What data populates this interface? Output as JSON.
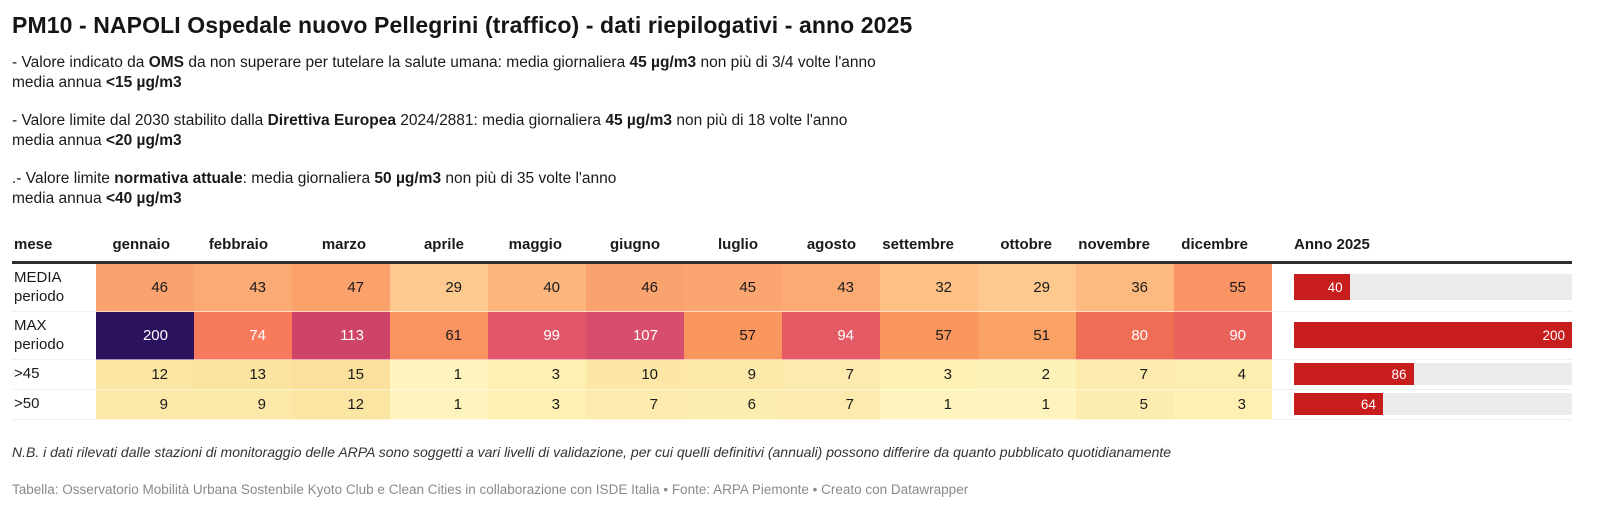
{
  "header": {
    "title": "PM10 - NAPOLI Ospedale nuovo Pellegrini (traffico) - dati riepilogativi - anno 2025"
  },
  "intro": {
    "paragraphs": [
      {
        "segments": [
          {
            "text": "- Valore indicato da "
          },
          {
            "text": "OMS",
            "bold": true
          },
          {
            "text": " da non superare per tutelare la salute umana: media giornaliera "
          },
          {
            "text": "45 µg/m3",
            "bold": true
          },
          {
            "text": " non più di 3/4 volte l'anno"
          },
          {
            "break": true
          },
          {
            "text": "media annua "
          },
          {
            "text": "<15 µg/m3",
            "bold": true
          }
        ]
      },
      {
        "segments": [
          {
            "text": "- Valore limite dal 2030 stabilito dalla "
          },
          {
            "text": "Direttiva Europea",
            "bold": true
          },
          {
            "text": " 2024/2881: media giornaliera "
          },
          {
            "text": "45 µg/m3",
            "bold": true
          },
          {
            "text": " non più di 18 volte l'anno"
          },
          {
            "break": true
          },
          {
            "text": "media annua "
          },
          {
            "text": "<20 µg/m3",
            "bold": true
          }
        ]
      },
      {
        "segments": [
          {
            "text": ".- Valore limite "
          },
          {
            "text": "normativa attuale",
            "bold": true
          },
          {
            "text": ": media giornaliera "
          },
          {
            "text": "50 µg/m3",
            "bold": true
          },
          {
            "text": " non più di 35 volte l'anno"
          },
          {
            "break": true
          },
          {
            "text": "media annua "
          },
          {
            "text": "<40 µg/m3",
            "bold": true
          }
        ]
      }
    ]
  },
  "table": {
    "header": [
      "mese",
      "gennaio",
      "febbraio",
      "marzo",
      "aprile",
      "maggio",
      "giugno",
      "luglio",
      "agosto",
      "settembre",
      "ottobre",
      "novembre",
      "dicembre",
      "Anno 2025"
    ],
    "bar_max": 200,
    "bar_color": "#c71e1d",
    "track_color": "#ececec",
    "rows": [
      {
        "label_lines": [
          "MEDIA",
          "periodo"
        ],
        "cells": [
          {
            "v": "46",
            "bg": "#fba36e",
            "fg": "#1a1a1a"
          },
          {
            "v": "43",
            "bg": "#fbaa74",
            "fg": "#1a1a1a"
          },
          {
            "v": "47",
            "bg": "#fba16b",
            "fg": "#1a1a1a"
          },
          {
            "v": "29",
            "bg": "#fdc98e",
            "fg": "#1a1a1a"
          },
          {
            "v": "40",
            "bg": "#fcb57c",
            "fg": "#1a1a1a"
          },
          {
            "v": "46",
            "bg": "#fba36e",
            "fg": "#1a1a1a"
          },
          {
            "v": "45",
            "bg": "#fba670",
            "fg": "#1a1a1a"
          },
          {
            "v": "43",
            "bg": "#fbaa74",
            "fg": "#1a1a1a"
          },
          {
            "v": "32",
            "bg": "#fdc186",
            "fg": "#1a1a1a"
          },
          {
            "v": "29",
            "bg": "#fdc98e",
            "fg": "#1a1a1a"
          },
          {
            "v": "36",
            "bg": "#fcba80",
            "fg": "#1a1a1a"
          },
          {
            "v": "55",
            "bg": "#fa9464",
            "fg": "#1a1a1a"
          }
        ],
        "bar": {
          "value": 40,
          "label": "40"
        }
      },
      {
        "label_lines": [
          "MAX",
          "periodo"
        ],
        "cells": [
          {
            "v": "200",
            "bg": "#2b115e",
            "fg": "#ffffff"
          },
          {
            "v": "74",
            "bg": "#f87a5d",
            "fg": "#ffffff"
          },
          {
            "v": "113",
            "bg": "#ce4368",
            "fg": "#ffffff"
          },
          {
            "v": "61",
            "bg": "#f9935f",
            "fg": "#1a1a1a"
          },
          {
            "v": "99",
            "bg": "#e15669",
            "fg": "#ffffff"
          },
          {
            "v": "107",
            "bg": "#d74e6c",
            "fg": "#ffffff"
          },
          {
            "v": "57",
            "bg": "#f9965e",
            "fg": "#1a1a1a"
          },
          {
            "v": "94",
            "bg": "#e45a65",
            "fg": "#ffffff"
          },
          {
            "v": "57",
            "bg": "#f9965e",
            "fg": "#1a1a1a"
          },
          {
            "v": "51",
            "bg": "#faa166",
            "fg": "#1a1a1a"
          },
          {
            "v": "80",
            "bg": "#f06d55",
            "fg": "#ffffff"
          },
          {
            "v": "90",
            "bg": "#ea625c",
            "fg": "#ffffff"
          }
        ],
        "bar": {
          "value": 200,
          "label": "200"
        }
      },
      {
        "label_lines": [
          ">45"
        ],
        "cells": [
          {
            "v": "12",
            "bg": "#fbe5a3",
            "fg": "#1a1a1a"
          },
          {
            "v": "13",
            "bg": "#fbe3a0",
            "fg": "#1a1a1a"
          },
          {
            "v": "15",
            "bg": "#fbe09b",
            "fg": "#1a1a1a"
          },
          {
            "v": "1",
            "bg": "#fdf5bd",
            "fg": "#1a1a1a"
          },
          {
            "v": "3",
            "bg": "#fdf0b2",
            "fg": "#1a1a1a"
          },
          {
            "v": "10",
            "bg": "#fce7a6",
            "fg": "#1a1a1a"
          },
          {
            "v": "9",
            "bg": "#fce8a9",
            "fg": "#1a1a1a"
          },
          {
            "v": "7",
            "bg": "#fcebad",
            "fg": "#1a1a1a"
          },
          {
            "v": "3",
            "bg": "#fdf0b2",
            "fg": "#1a1a1a"
          },
          {
            "v": "2",
            "bg": "#fdf3b8",
            "fg": "#1a1a1a"
          },
          {
            "v": "7",
            "bg": "#fcebad",
            "fg": "#1a1a1a"
          },
          {
            "v": "4",
            "bg": "#fdeeb0",
            "fg": "#1a1a1a"
          }
        ],
        "bar": {
          "value": 86,
          "label": "86"
        }
      },
      {
        "label_lines": [
          ">50"
        ],
        "cells": [
          {
            "v": "9",
            "bg": "#fce8a9",
            "fg": "#1a1a1a"
          },
          {
            "v": "9",
            "bg": "#fce8a9",
            "fg": "#1a1a1a"
          },
          {
            "v": "12",
            "bg": "#fbe5a3",
            "fg": "#1a1a1a"
          },
          {
            "v": "1",
            "bg": "#fdf5bd",
            "fg": "#1a1a1a"
          },
          {
            "v": "3",
            "bg": "#fdf0b2",
            "fg": "#1a1a1a"
          },
          {
            "v": "7",
            "bg": "#fcebad",
            "fg": "#1a1a1a"
          },
          {
            "v": "6",
            "bg": "#fcedae",
            "fg": "#1a1a1a"
          },
          {
            "v": "7",
            "bg": "#fcebad",
            "fg": "#1a1a1a"
          },
          {
            "v": "1",
            "bg": "#fdf5bd",
            "fg": "#1a1a1a"
          },
          {
            "v": "1",
            "bg": "#fdf5bd",
            "fg": "#1a1a1a"
          },
          {
            "v": "5",
            "bg": "#fdecaf",
            "fg": "#1a1a1a"
          },
          {
            "v": "3",
            "bg": "#fdf0b2",
            "fg": "#1a1a1a"
          }
        ],
        "bar": {
          "value": 64,
          "label": "64"
        }
      }
    ]
  },
  "chart_data": {
    "type": "table",
    "title": "PM10 - NAPOLI Ospedale nuovo Pellegrini (traffico) - dati riepilogativi - anno 2025",
    "categories": [
      "gennaio",
      "febbraio",
      "marzo",
      "aprile",
      "maggio",
      "giugno",
      "luglio",
      "agosto",
      "settembre",
      "ottobre",
      "novembre",
      "dicembre"
    ],
    "series": [
      {
        "name": "MEDIA periodo",
        "values": [
          46,
          43,
          47,
          29,
          40,
          46,
          45,
          43,
          32,
          29,
          36,
          55
        ],
        "anno_2025": 40
      },
      {
        "name": "MAX periodo",
        "values": [
          200,
          74,
          113,
          61,
          99,
          107,
          57,
          94,
          57,
          51,
          80,
          90
        ],
        "anno_2025": 200
      },
      {
        "name": ">45",
        "values": [
          12,
          13,
          15,
          1,
          3,
          10,
          9,
          7,
          3,
          2,
          7,
          4
        ],
        "anno_2025": 86
      },
      {
        "name": ">50",
        "values": [
          9,
          9,
          12,
          1,
          3,
          7,
          6,
          7,
          1,
          1,
          5,
          3
        ],
        "anno_2025": 64
      }
    ],
    "annual_bar_axis_max": 200,
    "heatmap": true,
    "legend_position": "none"
  },
  "footer": {
    "note": "N.B. i dati rilevati dalle stazioni di monitoraggio delle ARPA sono soggetti a vari livelli di validazione, per cui quelli definitivi (annuali) possono differire da quanto pubblicato quotidianamente",
    "source": "Tabella: Osservatorio Mobilità Urbana Sostenbile Kyoto Club e Clean Cities in collaborazione con ISDE Italia • Fonte: ARPA Piemonte • Creato con Datawrapper"
  }
}
